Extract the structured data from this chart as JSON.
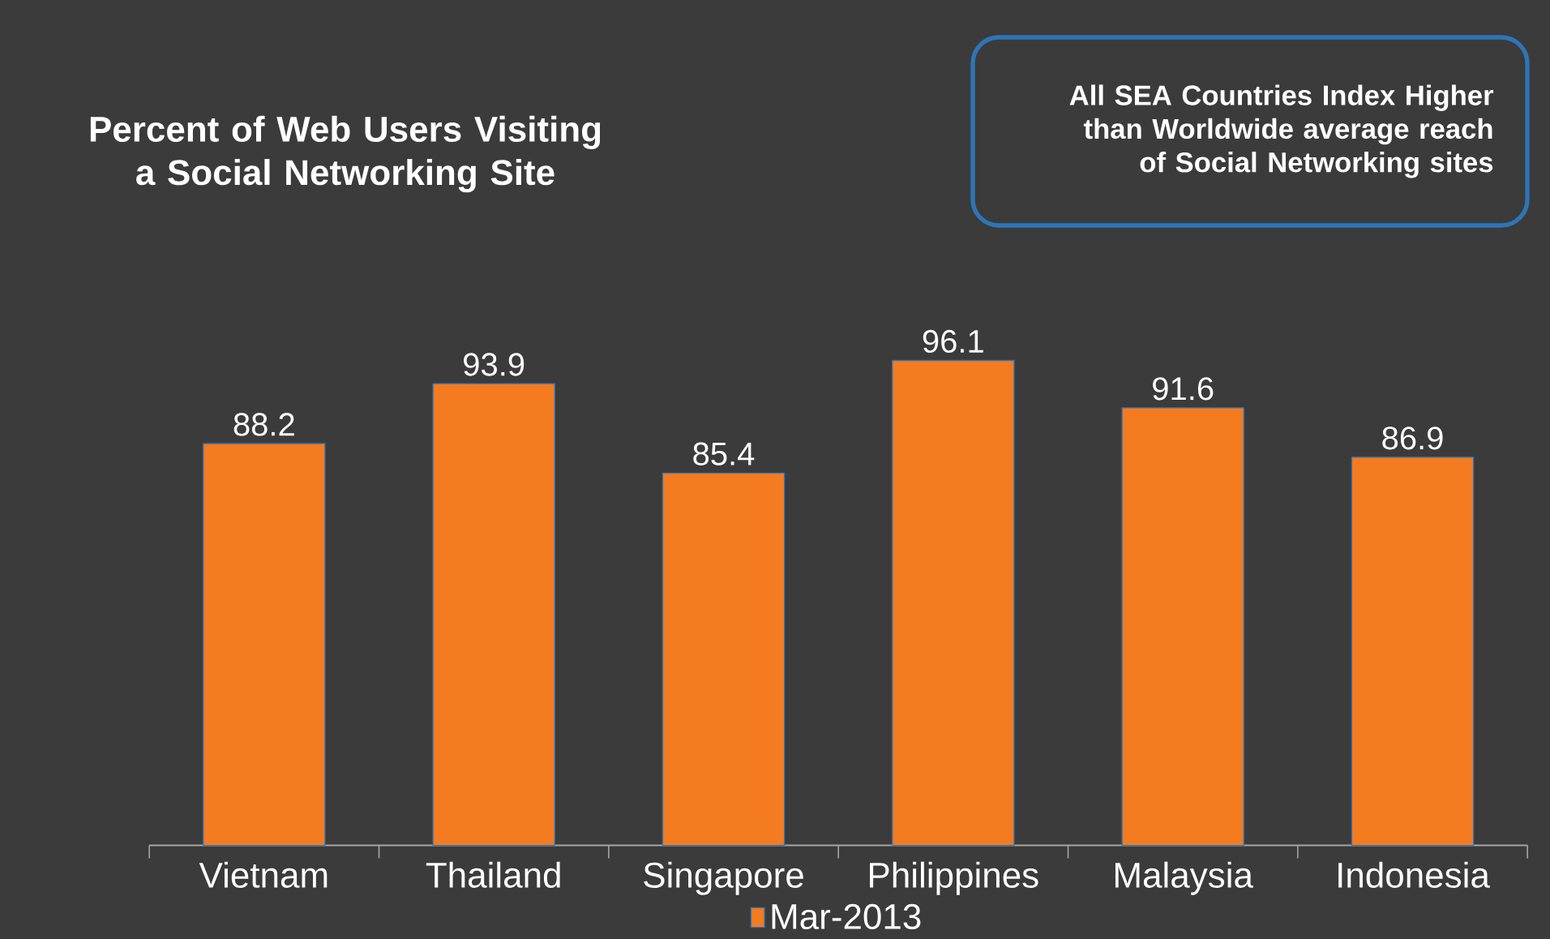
{
  "chart_data": {
    "type": "bar",
    "title": "Percent of Web Users Visiting a Social Networking Site",
    "annotations": [
      "All SEA Countries Index Higher than Worldwide average reach of Social Networking sites"
    ],
    "categories": [
      "Vietnam",
      "Thailand",
      "Singapore",
      "Philippines",
      "Malaysia",
      "Indonesia"
    ],
    "series": [
      {
        "name": "Mar-2013",
        "color": "#f47b20",
        "values": [
          88.2,
          93.9,
          85.4,
          96.1,
          91.6,
          86.9
        ]
      }
    ],
    "ylim": [
      50,
      96.1
    ],
    "data_labels": true,
    "legend": "bottom"
  }
}
